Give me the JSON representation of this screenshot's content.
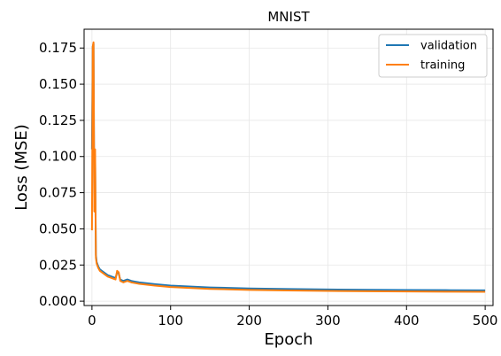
{
  "chart_data": {
    "type": "line",
    "title": "MNIST",
    "xlabel": "Epoch",
    "ylabel": "Loss (MSE)",
    "xlim": [
      -10,
      510
    ],
    "ylim": [
      -0.003,
      0.188
    ],
    "xticks": [
      0,
      100,
      200,
      300,
      400,
      500
    ],
    "xtick_labels": [
      "0",
      "100",
      "200",
      "300",
      "400",
      "500"
    ],
    "yticks": [
      0.0,
      0.025,
      0.05,
      0.075,
      0.1,
      0.125,
      0.15,
      0.175
    ],
    "ytick_labels": [
      "0.000",
      "0.025",
      "0.050",
      "0.075",
      "0.100",
      "0.125",
      "0.150",
      "0.175"
    ],
    "grid": true,
    "legend_position": "top-right",
    "series": [
      {
        "name": "validation",
        "color": "#1f77b4",
        "x": [
          0,
          1,
          2,
          3,
          4,
          5,
          6,
          8,
          10,
          15,
          20,
          25,
          30,
          32,
          34,
          36,
          40,
          45,
          50,
          55,
          60,
          80,
          100,
          150,
          200,
          250,
          300,
          350,
          400,
          450,
          500
        ],
        "y": [
          0.105,
          0.176,
          0.178,
          0.065,
          0.101,
          0.032,
          0.027,
          0.024,
          0.022,
          0.02,
          0.018,
          0.017,
          0.016,
          0.02,
          0.019,
          0.015,
          0.014,
          0.015,
          0.014,
          0.0135,
          0.013,
          0.0118,
          0.0108,
          0.0095,
          0.0088,
          0.0084,
          0.0081,
          0.0079,
          0.0077,
          0.0076,
          0.0075
        ]
      },
      {
        "name": "training",
        "color": "#ff7f0e",
        "x": [
          0,
          1,
          2,
          3,
          4,
          5,
          6,
          8,
          10,
          15,
          20,
          25,
          30,
          32,
          34,
          36,
          40,
          45,
          50,
          55,
          60,
          80,
          100,
          150,
          200,
          250,
          300,
          350,
          400,
          450,
          500
        ],
        "y": [
          0.049,
          0.176,
          0.179,
          0.062,
          0.105,
          0.03,
          0.026,
          0.023,
          0.021,
          0.019,
          0.017,
          0.016,
          0.015,
          0.021,
          0.02,
          0.014,
          0.013,
          0.014,
          0.013,
          0.0125,
          0.012,
          0.0108,
          0.0098,
          0.0085,
          0.0078,
          0.0074,
          0.0071,
          0.0069,
          0.0067,
          0.0066,
          0.0065
        ]
      }
    ]
  }
}
